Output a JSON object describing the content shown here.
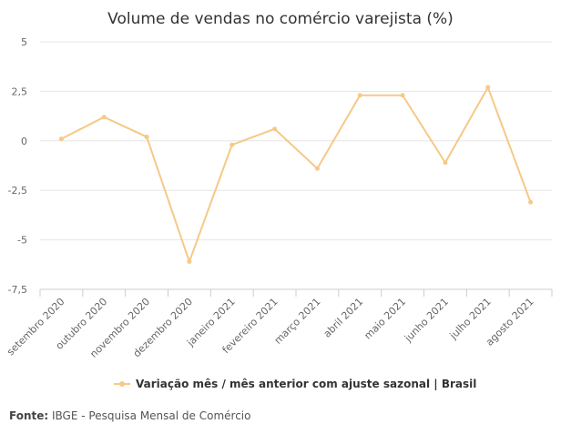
{
  "chart_data": {
    "type": "line",
    "title": "Volume de vendas no comércio varejista (%)",
    "categories": [
      "setembro 2020",
      "outubro 2020",
      "novembro 2020",
      "dezembro 2020",
      "janeiro 2021",
      "fevereiro 2021",
      "março 2021",
      "abril 2021",
      "maio 2021",
      "junho 2021",
      "julho 2021",
      "agosto 2021"
    ],
    "series": [
      {
        "name": "Variação mês / mês anterior com ajuste sazonal | Brasil",
        "values": [
          0.1,
          1.2,
          0.2,
          -6.1,
          -0.2,
          0.6,
          -1.4,
          2.3,
          2.3,
          -1.1,
          2.7,
          -3.1
        ],
        "color": "#f5c987"
      }
    ],
    "yticks": [
      "5",
      "2,5",
      "0",
      "-2,5",
      "-5",
      "-7,5"
    ],
    "ylim": [
      -7.5,
      5
    ],
    "grid": true,
    "legend": "bottom-center"
  },
  "source": {
    "label": "Fonte:",
    "text": "IBGE - Pesquisa Mensal de Comércio"
  }
}
